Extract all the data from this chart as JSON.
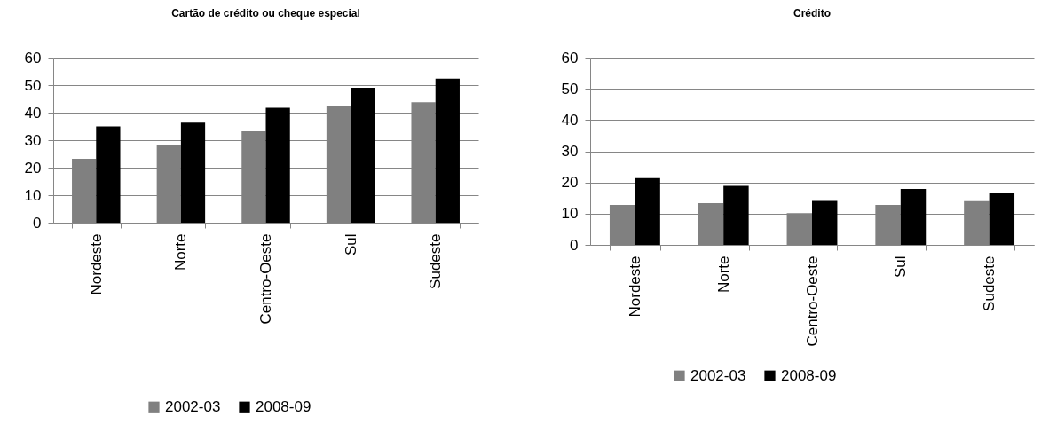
{
  "chart_data": [
    {
      "type": "bar",
      "title": "Cartão de crédito ou cheque especial",
      "categories": [
        "Nordeste",
        "Norte",
        "Centro-Oeste",
        "Sul",
        "Sudeste"
      ],
      "series": [
        {
          "name": "2002-03",
          "color": "#808080",
          "values": [
            23.2,
            28.1,
            33.2,
            42.3,
            43.8
          ]
        },
        {
          "name": "2008-09",
          "color": "#000000",
          "values": [
            35.0,
            36.4,
            41.8,
            49.0,
            52.3
          ]
        }
      ],
      "ylim": [
        0,
        60
      ],
      "yticks": [
        0,
        10,
        20,
        30,
        40,
        50,
        60
      ],
      "grid": "y",
      "legend": "bottom"
    },
    {
      "type": "bar",
      "title": "Crédito",
      "categories": [
        "Nordeste",
        "Norte",
        "Centro-Oeste",
        "Sul",
        "Sudeste"
      ],
      "series": [
        {
          "name": "2002-03",
          "color": "#808080",
          "values": [
            12.8,
            13.4,
            10.2,
            12.8,
            14.0
          ]
        },
        {
          "name": "2008-09",
          "color": "#000000",
          "values": [
            21.4,
            18.9,
            14.1,
            17.9,
            16.5
          ]
        }
      ],
      "ylim": [
        0,
        60
      ],
      "yticks": [
        0,
        10,
        20,
        30,
        40,
        50,
        60
      ],
      "grid": "y",
      "legend": "bottom"
    }
  ]
}
